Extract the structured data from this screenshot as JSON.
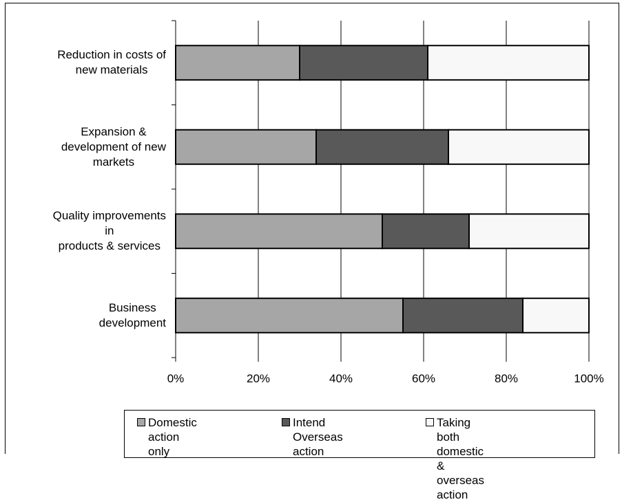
{
  "chart_data": {
    "type": "bar",
    "orientation": "horizontal",
    "stacked": true,
    "percent_stacked": true,
    "categories": [
      "Reduction in costs of\nnew materials",
      "Expansion &\ndevelopment of new\nmarkets",
      "Quality improvements\nin\nproducts & services",
      "Business\ndevelopment"
    ],
    "series": [
      {
        "name": "Domestic action\nonly",
        "values": [
          30,
          34,
          50,
          55
        ],
        "color": "#a6a6a6"
      },
      {
        "name": "Intend Overseas\naction",
        "values": [
          31,
          32,
          21,
          29
        ],
        "color": "#595959"
      },
      {
        "name": "Taking both domestic\n& overseas action",
        "values": [
          39,
          34,
          29,
          16
        ],
        "color": "#f8f8f8"
      }
    ],
    "xlim": [
      0,
      100
    ],
    "x_ticks": [
      "0%",
      "20%",
      "40%",
      "60%",
      "80%",
      "100%"
    ],
    "title": "",
    "xlabel": "",
    "ylabel": "",
    "grid": "vertical",
    "legend_position": "bottom"
  }
}
